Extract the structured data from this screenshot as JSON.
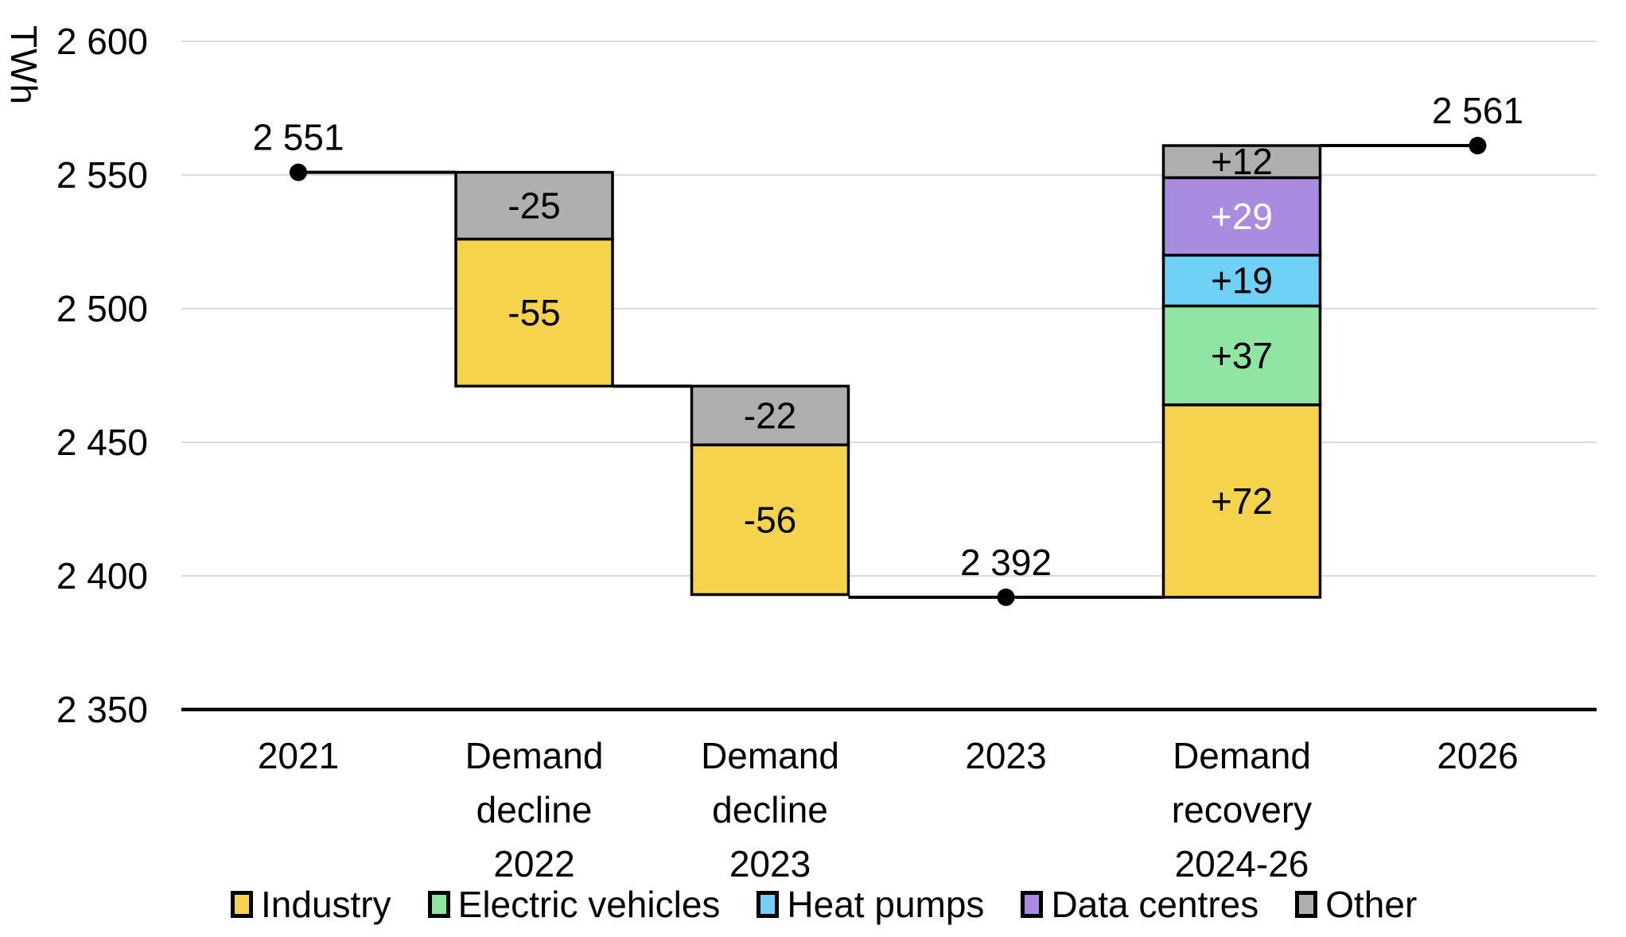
{
  "chart_data": {
    "type": "bar",
    "subtype": "waterfall",
    "title": "",
    "unit_label": "TWh",
    "grid": true,
    "ylim": [
      2350,
      2600
    ],
    "yticks": [
      {
        "value": 2600,
        "label": "2 600"
      },
      {
        "value": 2550,
        "label": "2 550"
      },
      {
        "value": 2500,
        "label": "2 500"
      },
      {
        "value": 2450,
        "label": "2 450"
      },
      {
        "value": 2400,
        "label": "2 400"
      },
      {
        "value": 2350,
        "label": "2 350"
      }
    ],
    "categories": [
      "2021",
      "Demand decline 2022",
      "Demand decline 2023",
      "2023",
      "Demand recovery 2024-26",
      "2026"
    ],
    "columns": [
      {
        "kind": "total",
        "category": "2021",
        "value": 2551,
        "label": "2 551"
      },
      {
        "kind": "delta",
        "category": "Demand decline 2022",
        "segments": [
          {
            "series": "Other",
            "value": -25,
            "label": "-25"
          },
          {
            "series": "Industry",
            "value": -55,
            "label": "-55"
          }
        ]
      },
      {
        "kind": "delta",
        "category": "Demand decline 2023",
        "segments": [
          {
            "series": "Other",
            "value": -22,
            "label": "-22"
          },
          {
            "series": "Industry",
            "value": -56,
            "label": "-56"
          }
        ]
      },
      {
        "kind": "total",
        "category": "2023",
        "value": 2392,
        "label": "2 392"
      },
      {
        "kind": "delta",
        "category": "Demand recovery 2024-26",
        "segments": [
          {
            "series": "Industry",
            "value": 72,
            "label": "+72"
          },
          {
            "series": "Electric vehicles",
            "value": 37,
            "label": "+37"
          },
          {
            "series": "Heat pumps",
            "value": 19,
            "label": "+19"
          },
          {
            "series": "Data centres",
            "value": 29,
            "label": "+29"
          },
          {
            "series": "Other",
            "value": 12,
            "label": "+12"
          }
        ]
      },
      {
        "kind": "total",
        "category": "2026",
        "value": 2561,
        "label": "2 561"
      }
    ],
    "legend": [
      {
        "label": "Industry",
        "color": "#F5D34C",
        "value_label_color": "#000000"
      },
      {
        "label": "Electric vehicles",
        "color": "#90E5A3",
        "value_label_color": "#000000"
      },
      {
        "label": "Heat pumps",
        "color": "#70D1F6",
        "value_label_color": "#000000"
      },
      {
        "label": "Data centres",
        "color": "#A98BE0",
        "value_label_color": "#FFFFFF"
      },
      {
        "label": "Other",
        "color": "#AFAFAF",
        "value_label_color": "#000000"
      }
    ],
    "legend_position": "bottom",
    "colors": {
      "gridline": "#DCDCDC",
      "axis_line": "#000000",
      "connector": "#000000",
      "bar_border": "#000000",
      "text": "#000000"
    }
  }
}
